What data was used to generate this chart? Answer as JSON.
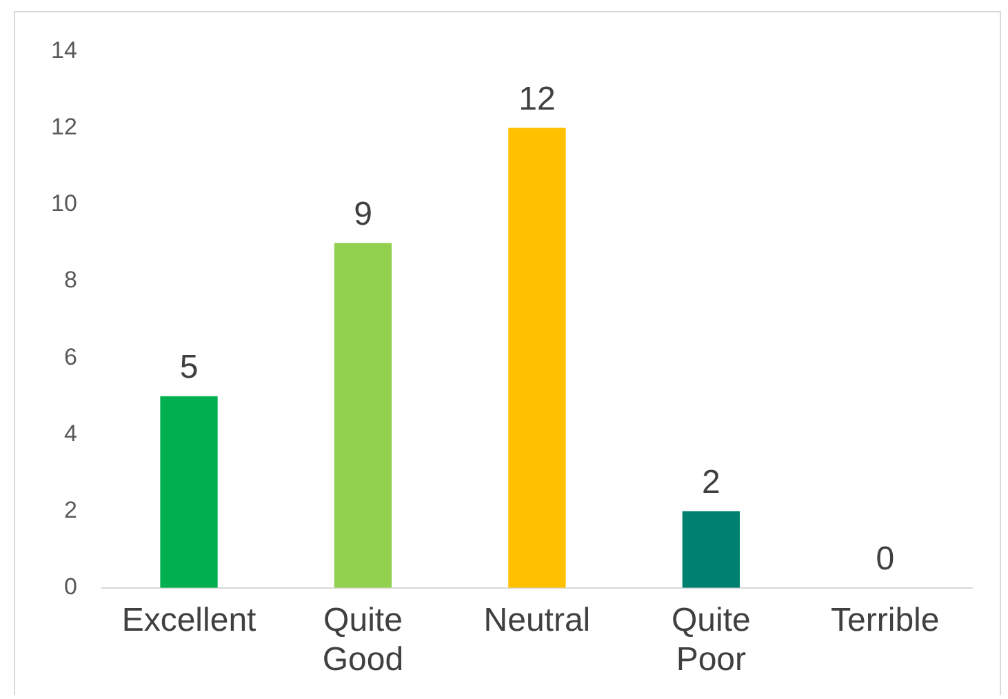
{
  "chart_data": {
    "type": "bar",
    "categories": [
      "Excellent",
      "Quite Good",
      "Neutral",
      "Quite Poor",
      "Terrible"
    ],
    "values": [
      5,
      9,
      12,
      2,
      0
    ],
    "colors": [
      "#00b050",
      "#92d050",
      "#ffc000",
      "#00806f",
      "#1f4e79"
    ],
    "ylim": [
      0,
      14
    ],
    "yticks": [
      0,
      2,
      4,
      6,
      8,
      10,
      12,
      14
    ],
    "data_labels": true
  }
}
